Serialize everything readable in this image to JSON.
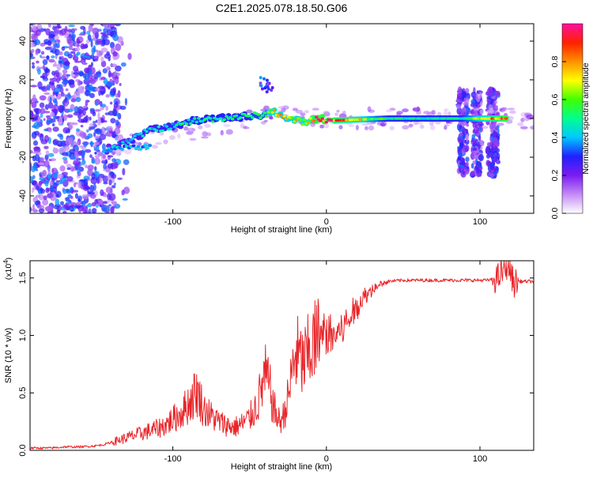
{
  "page_title": "C2E1.2025.078.18.50.G06",
  "colorbar": {
    "label": "Normalized spectral amplitude",
    "ticks": [
      "0.0",
      "0.2",
      "0.4",
      "0.6",
      "0.8"
    ],
    "colors": [
      "#ffffff",
      "#c58af7",
      "#7a1cf0",
      "#2020ff",
      "#00c8ff",
      "#00ff90",
      "#40ff00",
      "#ffff00",
      "#ff9000",
      "#ff2000",
      "#ff10a0"
    ]
  },
  "chart_data": [
    {
      "type": "heatmap",
      "ylabel": "Frequency (Hz)",
      "xlabel": "Height of straight line (km)",
      "xlim": [
        -193,
        135
      ],
      "ylim": [
        -49,
        49
      ],
      "xticks": [
        -100,
        0,
        100
      ],
      "xtick_labels": [
        "-100",
        "0",
        "100"
      ],
      "yticks": [
        -40,
        -20,
        0,
        20,
        40
      ],
      "ytick_labels": [
        "-40",
        "-20",
        "0",
        "20",
        "40"
      ],
      "signal_track": [
        {
          "x": -143,
          "y": -16,
          "amp": 0.35
        },
        {
          "x": -130,
          "y": -12,
          "amp": 0.4
        },
        {
          "x": -115,
          "y": -6,
          "amp": 0.45
        },
        {
          "x": -100,
          "y": -4,
          "amp": 0.45
        },
        {
          "x": -85,
          "y": -1,
          "amp": 0.5
        },
        {
          "x": -70,
          "y": 0,
          "amp": 0.5
        },
        {
          "x": -55,
          "y": 1,
          "amp": 0.5
        },
        {
          "x": -40,
          "y": 2,
          "amp": 0.55
        },
        {
          "x": -35,
          "y": 4,
          "amp": 0.75
        },
        {
          "x": -25,
          "y": 0,
          "amp": 0.7
        },
        {
          "x": -15,
          "y": -2,
          "amp": 0.75
        },
        {
          "x": -5,
          "y": 0,
          "amp": 0.95
        },
        {
          "x": 5,
          "y": -1,
          "amp": 0.9
        },
        {
          "x": 40,
          "y": 0,
          "amp": 0.5
        },
        {
          "x": 88,
          "y": 0,
          "amp": 0.5
        },
        {
          "x": 118,
          "y": 0,
          "amp": 0.95
        }
      ]
    },
    {
      "type": "line",
      "ylabel": "SNR (10 * v/v)",
      "xlabel": "Height of straight line (km)",
      "y_multiplier_label": "(x10",
      "y_multiplier_exp": "4",
      "xlim": [
        -193,
        135
      ],
      "ylim": [
        0,
        1.65
      ],
      "xticks": [
        -100,
        0,
        100
      ],
      "xtick_labels": [
        "-100",
        "0",
        "100"
      ],
      "yticks": [
        0,
        0.5,
        1.0,
        1.5
      ],
      "ytick_labels": [
        "0.0",
        "0.5",
        "1.0",
        "1.5"
      ],
      "line_color": "#e8262a",
      "series": [
        {
          "x": [
            -193,
            -180,
            -170,
            -160,
            -150,
            -145,
            -140,
            -135,
            -130,
            -125,
            -120,
            -115,
            -110,
            -105,
            -100,
            -95,
            -90,
            -87,
            -85,
            -82,
            -80,
            -75,
            -70,
            -65,
            -60,
            -55,
            -50,
            -45,
            -42,
            -40,
            -37,
            -35,
            -32,
            -30,
            -28,
            -25,
            -22,
            -20,
            -18,
            -15,
            -12,
            -10,
            -5,
            0,
            5,
            10,
            15,
            20,
            25,
            30,
            35,
            40,
            50,
            60,
            70,
            80,
            90,
            100,
            105,
            110,
            113,
            116,
            118,
            120,
            122,
            125,
            130,
            135
          ],
          "y": [
            0.02,
            0.02,
            0.03,
            0.03,
            0.04,
            0.05,
            0.07,
            0.09,
            0.11,
            0.13,
            0.15,
            0.17,
            0.19,
            0.22,
            0.27,
            0.32,
            0.4,
            0.46,
            0.52,
            0.44,
            0.36,
            0.3,
            0.25,
            0.22,
            0.2,
            0.23,
            0.28,
            0.4,
            0.55,
            0.65,
            0.55,
            0.4,
            0.28,
            0.25,
            0.3,
            0.45,
            0.7,
            0.85,
            0.8,
            0.75,
            0.82,
            0.9,
            0.95,
            1.02,
            1.0,
            1.05,
            1.15,
            1.25,
            1.35,
            1.4,
            1.45,
            1.47,
            1.48,
            1.48,
            1.48,
            1.48,
            1.48,
            1.48,
            1.48,
            1.49,
            1.52,
            1.58,
            1.62,
            1.55,
            1.45,
            1.47,
            1.47,
            1.47
          ]
        }
      ]
    }
  ]
}
